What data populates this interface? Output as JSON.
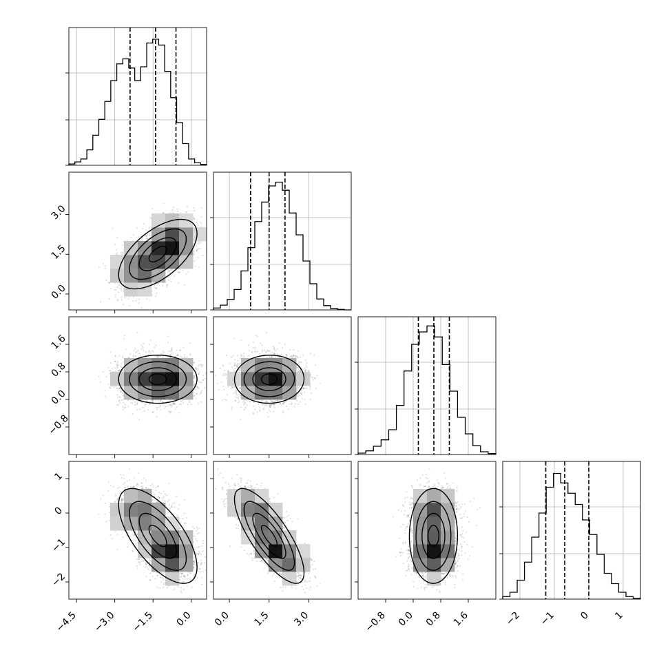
{
  "chart_data": {
    "type": "corner",
    "parameters": [
      {
        "range": [
          -4.8,
          0.6
        ],
        "ticks": [
          -4.5,
          -3.0,
          -1.5,
          0.0
        ],
        "tick_labels": [
          "−4.5",
          "−3.0",
          "−1.5",
          "0.0"
        ],
        "quantiles": [
          -2.4,
          -1.4,
          -0.6
        ]
      },
      {
        "range": [
          -0.6,
          4.6
        ],
        "ticks": [
          0.0,
          1.5,
          3.0
        ],
        "tick_labels": [
          "0.0",
          "1.5",
          "3.0"
        ],
        "quantiles": [
          0.8,
          1.5,
          2.1
        ]
      },
      {
        "range": [
          -1.6,
          2.4
        ],
        "ticks": [
          -0.8,
          0.0,
          0.8,
          1.6
        ],
        "tick_labels": [
          "−0.8",
          "0.0",
          "0.8",
          "1.6"
        ],
        "quantiles": [
          0.15,
          0.6,
          1.05
        ]
      },
      {
        "range": [
          -2.5,
          1.5
        ],
        "ticks": [
          -2,
          -1,
          0,
          1
        ],
        "tick_labels": [
          "−2",
          "−1",
          "0",
          "1"
        ],
        "quantiles": [
          -1.25,
          -0.7,
          0.0
        ]
      }
    ],
    "histograms": [
      {
        "counts": [
          0.3,
          0.8,
          1.5,
          3.7,
          7.2,
          11.0,
          15.3,
          20.3,
          24.3,
          25.5,
          23.3,
          20.3,
          23.6,
          29.3,
          30.2,
          28.8,
          22.5,
          16.2,
          10.2,
          5.2,
          1.5,
          0.6,
          0.2
        ],
        "ylim": [
          0,
          33
        ]
      },
      {
        "counts": [
          0.4,
          1.0,
          2.2,
          4.3,
          8.2,
          13.1,
          18.6,
          22.7,
          26.1,
          26.9,
          25.2,
          20.4,
          15.8,
          10.3,
          5.5,
          2.3,
          0.9,
          0.3,
          0.1,
          0.0
        ],
        "ylim": [
          0,
          29
        ]
      },
      {
        "counts": [
          0.3,
          0.8,
          1.8,
          3.2,
          5.4,
          10.7,
          18.2,
          24.0,
          26.7,
          28.0,
          25.6,
          19.6,
          13.8,
          8.1,
          4.5,
          1.9,
          0.6,
          0.2
        ],
        "ylim": [
          0,
          30
        ]
      },
      {
        "counts": [
          0.3,
          0.8,
          2.2,
          4.3,
          7.2,
          10.0,
          13.0,
          14.6,
          13.5,
          12.3,
          11.0,
          9.2,
          7.5,
          5.2,
          3.0,
          1.8,
          0.8,
          0.3,
          0.1
        ],
        "ylim": [
          0,
          16
        ]
      }
    ],
    "contour_levels": 4,
    "show_datapoints": true,
    "grid": true
  }
}
